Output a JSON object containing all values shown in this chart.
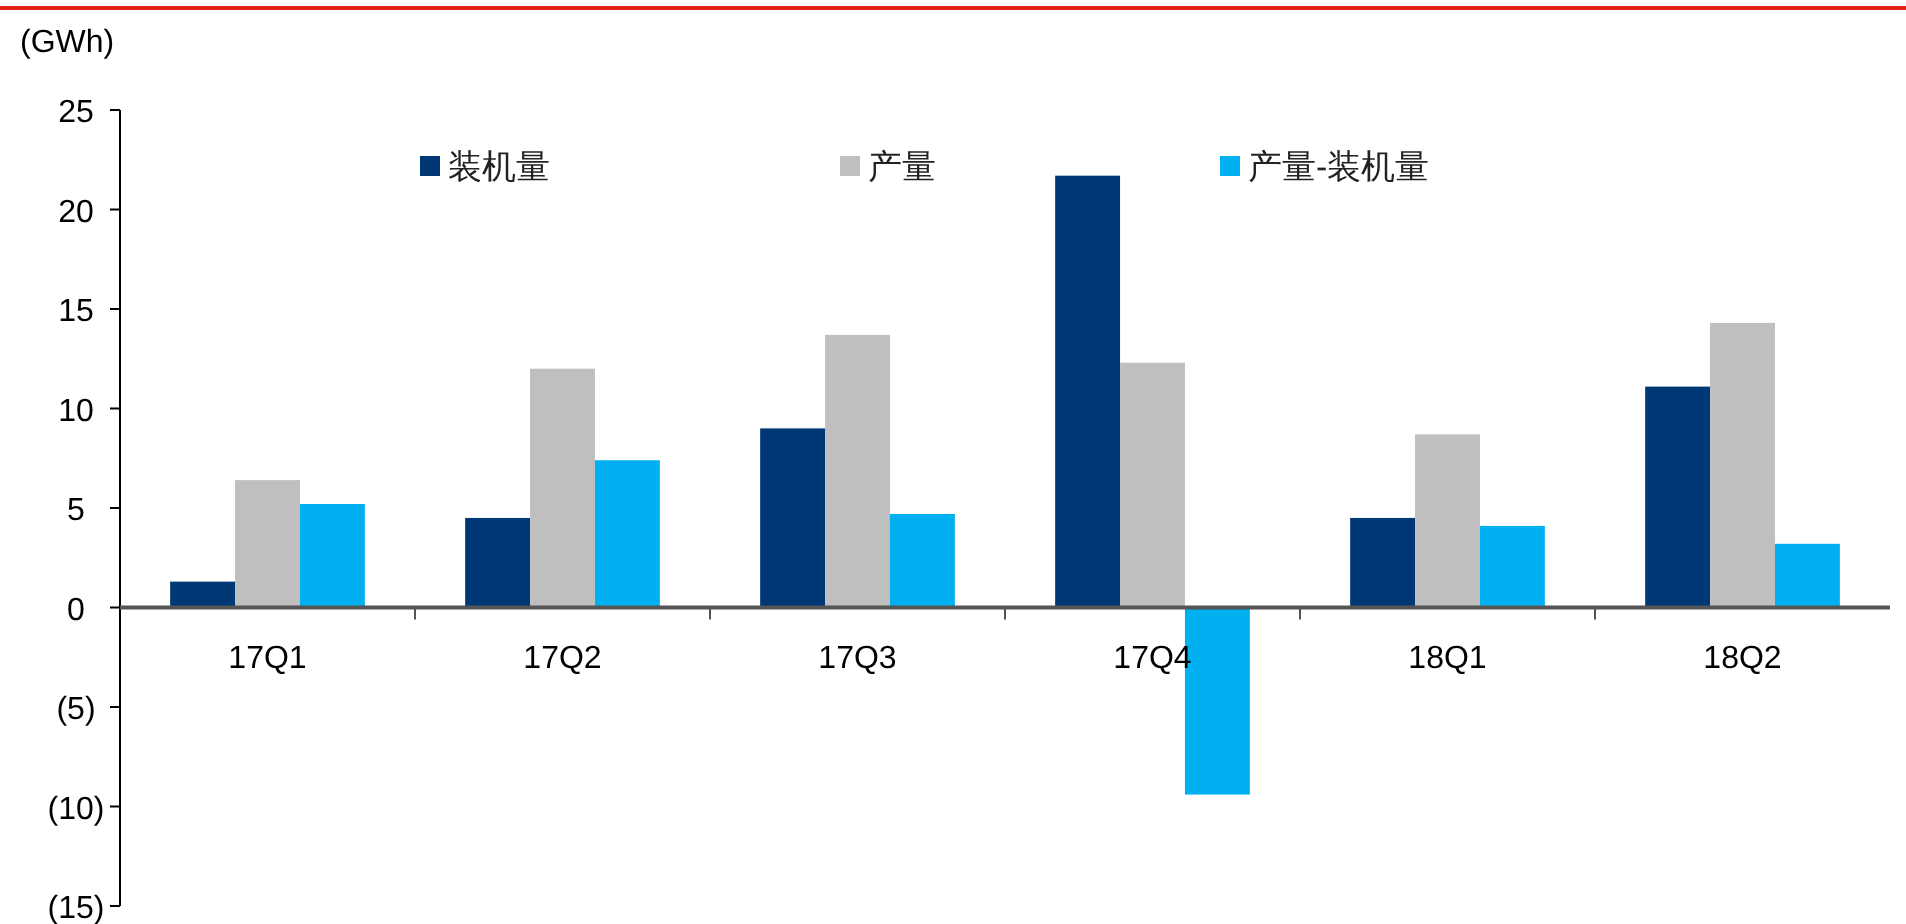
{
  "chart_data": {
    "type": "bar",
    "ylabel": "(GWh)",
    "categories": [
      "17Q1",
      "17Q2",
      "17Q3",
      "17Q4",
      "18Q1",
      "18Q2"
    ],
    "series": [
      {
        "name": "装机量",
        "color": "#003876",
        "values": [
          1.3,
          4.5,
          9.0,
          21.7,
          4.5,
          11.1
        ]
      },
      {
        "name": "产量",
        "color": "#bfbfbf",
        "values": [
          6.4,
          12.0,
          13.7,
          12.3,
          8.7,
          14.3
        ]
      },
      {
        "name": "产量-装机量",
        "color": "#00b0f0",
        "values": [
          5.2,
          7.4,
          4.7,
          -9.4,
          4.1,
          3.2
        ]
      }
    ],
    "ylim": [
      -15,
      25
    ],
    "yticks": [
      {
        "value": -15,
        "label": "(15)"
      },
      {
        "value": -10,
        "label": "(10)"
      },
      {
        "value": -5,
        "label": "(5)"
      },
      0,
      5,
      10,
      15,
      20,
      25
    ],
    "grid": false,
    "legend": "top"
  }
}
